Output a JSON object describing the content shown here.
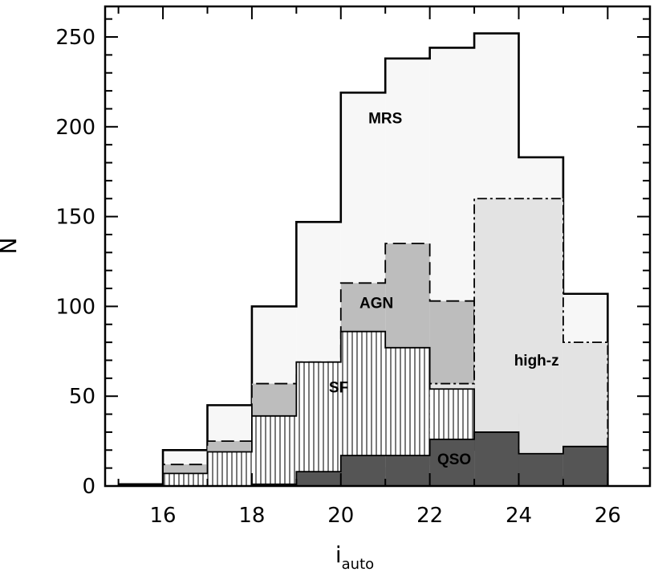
{
  "chart_data": {
    "type": "histogram",
    "xlabel": "i",
    "xlabel_sub": "auto",
    "ylabel": "N",
    "xlim": [
      14.7,
      26.95
    ],
    "ylim": [
      0,
      267
    ],
    "bin_edges": [
      15,
      16,
      17,
      18,
      19,
      20,
      21,
      22,
      23,
      24,
      25,
      26
    ],
    "xticks": [
      16,
      18,
      20,
      22,
      24,
      26
    ],
    "yticks": [
      0,
      50,
      100,
      150,
      200,
      250
    ],
    "series": [
      {
        "name": "MRS",
        "values": [
          1,
          20,
          45,
          100,
          147,
          219,
          238,
          244,
          252,
          183,
          107
        ],
        "fill": "#f7f7f7",
        "line": "solid"
      },
      {
        "name": "AGN",
        "values": [
          0,
          12,
          25,
          57,
          69,
          113,
          135,
          103,
          40,
          18,
          21
        ],
        "fill": "#bdbdbd",
        "line": "dashed"
      },
      {
        "name": "high-z",
        "values": [
          0,
          0,
          0,
          0,
          0,
          0,
          10,
          57,
          160,
          160,
          80
        ],
        "fill": "#e3e3e3",
        "line": "dashdot"
      },
      {
        "name": "SF",
        "values": [
          0,
          7,
          19,
          39,
          69,
          86,
          77,
          54,
          20,
          5,
          0
        ],
        "fill": "hatch",
        "line": "solid"
      },
      {
        "name": "QSO",
        "values": [
          0,
          0,
          0,
          1,
          8,
          17,
          17,
          26,
          30,
          18,
          22
        ],
        "fill": "#555555",
        "line": "solid"
      }
    ],
    "annotations": [
      {
        "text": "MRS",
        "x": 21.0,
        "y": 202
      },
      {
        "text": "AGN",
        "x": 20.8,
        "y": 99
      },
      {
        "text": "high-z",
        "x": 24.4,
        "y": 67
      },
      {
        "text": "SF",
        "x": 19.95,
        "y": 52
      },
      {
        "text": "QSO",
        "x": 22.55,
        "y": 12
      }
    ]
  }
}
